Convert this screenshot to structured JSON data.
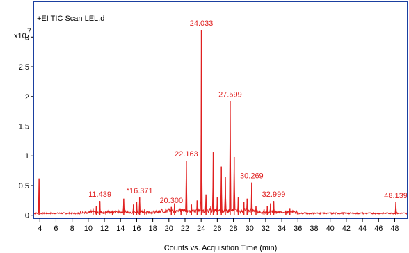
{
  "chart_data": {
    "type": "line",
    "title": "+EI TIC Scan LEL.d",
    "xlabel": "Counts vs. Acquisition Time (min)",
    "ylabel": "",
    "y_multiplier": "x10",
    "y_exponent": "7",
    "xlim": [
      3.2,
      49.6
    ],
    "ylim": [
      -0.05,
      3.6
    ],
    "xticks": [
      4,
      6,
      8,
      10,
      12,
      14,
      16,
      18,
      20,
      22,
      24,
      26,
      28,
      30,
      32,
      34,
      36,
      38,
      40,
      42,
      44,
      46,
      48
    ],
    "yticks": [
      0,
      0.5,
      1,
      1.5,
      2,
      2.5,
      3
    ],
    "ytick_labels": [
      "0",
      "0.5",
      "1",
      "1.5",
      "2",
      "2.5",
      "3"
    ],
    "grid": false,
    "line_color": "#e02020",
    "label_color": "#e02020",
    "frame_color": "#1a3fa0",
    "peaks": [
      {
        "x": 3.9,
        "y": 0.62
      },
      {
        "x": 10.6,
        "y": 0.12
      },
      {
        "x": 11.0,
        "y": 0.15
      },
      {
        "x": 11.439,
        "y": 0.24
      },
      {
        "x": 13.0,
        "y": 0.08
      },
      {
        "x": 14.4,
        "y": 0.28
      },
      {
        "x": 15.6,
        "y": 0.18
      },
      {
        "x": 16.0,
        "y": 0.22
      },
      {
        "x": 16.371,
        "y": 0.3
      },
      {
        "x": 17.0,
        "y": 0.1
      },
      {
        "x": 20.3,
        "y": 0.14
      },
      {
        "x": 20.7,
        "y": 0.2
      },
      {
        "x": 21.5,
        "y": 0.1
      },
      {
        "x": 22.163,
        "y": 0.92
      },
      {
        "x": 22.8,
        "y": 0.18
      },
      {
        "x": 23.5,
        "y": 0.25
      },
      {
        "x": 24.033,
        "y": 3.12
      },
      {
        "x": 24.6,
        "y": 0.35
      },
      {
        "x": 25.2,
        "y": 0.15
      },
      {
        "x": 25.5,
        "y": 1.06
      },
      {
        "x": 26.0,
        "y": 0.3
      },
      {
        "x": 26.5,
        "y": 0.82
      },
      {
        "x": 27.0,
        "y": 0.65
      },
      {
        "x": 27.599,
        "y": 1.92
      },
      {
        "x": 28.1,
        "y": 0.98
      },
      {
        "x": 28.6,
        "y": 0.3
      },
      {
        "x": 29.3,
        "y": 0.22
      },
      {
        "x": 29.7,
        "y": 0.28
      },
      {
        "x": 30.269,
        "y": 0.55
      },
      {
        "x": 30.8,
        "y": 0.15
      },
      {
        "x": 31.8,
        "y": 0.1
      },
      {
        "x": 32.2,
        "y": 0.15
      },
      {
        "x": 32.6,
        "y": 0.2
      },
      {
        "x": 32.999,
        "y": 0.24
      },
      {
        "x": 34.5,
        "y": 0.08
      },
      {
        "x": 35.0,
        "y": 0.12
      },
      {
        "x": 36.0,
        "y": 0.05
      },
      {
        "x": 48.139,
        "y": 0.22
      }
    ],
    "annotations": [
      {
        "text": "11.439",
        "x": 11.439,
        "y": 0.24
      },
      {
        "text": "*16.371",
        "x": 16.371,
        "y": 0.3
      },
      {
        "text": "20.300",
        "x": 20.3,
        "y": 0.14
      },
      {
        "text": "22.163",
        "x": 22.163,
        "y": 0.92
      },
      {
        "text": "24.033",
        "x": 24.033,
        "y": 3.12
      },
      {
        "text": "27.599",
        "x": 27.599,
        "y": 1.92
      },
      {
        "text": "30.269",
        "x": 30.269,
        "y": 0.55
      },
      {
        "text": "32.999",
        "x": 32.999,
        "y": 0.24
      },
      {
        "text": "48.139",
        "x": 48.139,
        "y": 0.22
      }
    ]
  }
}
